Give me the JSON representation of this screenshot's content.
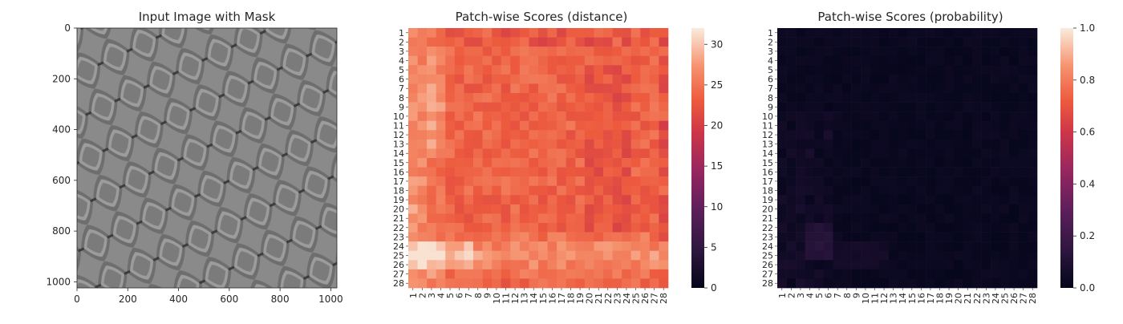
{
  "chart_data": [
    {
      "type": "image",
      "title": "Input Image with Mask",
      "xlim": [
        0,
        1024
      ],
      "ylim": [
        1024,
        0
      ],
      "xticks": [
        "0",
        "200",
        "400",
        "600",
        "800",
        "1000"
      ],
      "yticks": [
        "0",
        "200",
        "400",
        "600",
        "800",
        "1000"
      ],
      "xtick_values": [
        0,
        200,
        400,
        600,
        800,
        1000
      ],
      "ytick_values": [
        0,
        200,
        400,
        600,
        800,
        1000
      ],
      "image_description_icon": "metal-mesh-texture"
    },
    {
      "type": "heatmap",
      "title": "Patch-wise Scores (distance)",
      "rows": [
        "1",
        "2",
        "3",
        "4",
        "5",
        "6",
        "7",
        "8",
        "9",
        "10",
        "11",
        "12",
        "13",
        "14",
        "15",
        "16",
        "17",
        "18",
        "19",
        "20",
        "21",
        "22",
        "23",
        "24",
        "25",
        "26",
        "27",
        "28"
      ],
      "cols": [
        "1",
        "2",
        "3",
        "4",
        "5",
        "6",
        "7",
        "8",
        "9",
        "10",
        "11",
        "12",
        "13",
        "14",
        "15",
        "16",
        "17",
        "18",
        "19",
        "20",
        "21",
        "22",
        "23",
        "24",
        "25",
        "26",
        "27",
        "28"
      ],
      "colorbar": {
        "vmin": 0,
        "vmax": 32,
        "ticks": [
          "0",
          "5",
          "10",
          "15",
          "20",
          "25",
          "30"
        ],
        "tick_values": [
          0,
          5,
          10,
          15,
          20,
          25,
          30
        ]
      },
      "approx_range": [
        18,
        32
      ],
      "colormap": "rocket"
    },
    {
      "type": "heatmap",
      "title": "Patch-wise Scores (probability)",
      "rows": [
        "1",
        "2",
        "3",
        "4",
        "5",
        "6",
        "7",
        "8",
        "9",
        "10",
        "11",
        "12",
        "13",
        "14",
        "15",
        "16",
        "17",
        "18",
        "19",
        "20",
        "21",
        "22",
        "23",
        "24",
        "25",
        "26",
        "27",
        "28"
      ],
      "cols": [
        "1",
        "2",
        "3",
        "4",
        "5",
        "6",
        "7",
        "8",
        "9",
        "10",
        "11",
        "12",
        "13",
        "14",
        "15",
        "16",
        "17",
        "18",
        "19",
        "20",
        "21",
        "22",
        "23",
        "24",
        "25",
        "26",
        "27",
        "28"
      ],
      "colorbar": {
        "vmin": 0,
        "vmax": 1,
        "ticks": [
          "0.0",
          "0.2",
          "0.4",
          "0.6",
          "0.8",
          "1.0"
        ],
        "tick_values": [
          0,
          0.2,
          0.4,
          0.6,
          0.8,
          1.0
        ]
      },
      "approx_range": [
        0,
        0.15
      ],
      "colormap": "rocket"
    }
  ]
}
